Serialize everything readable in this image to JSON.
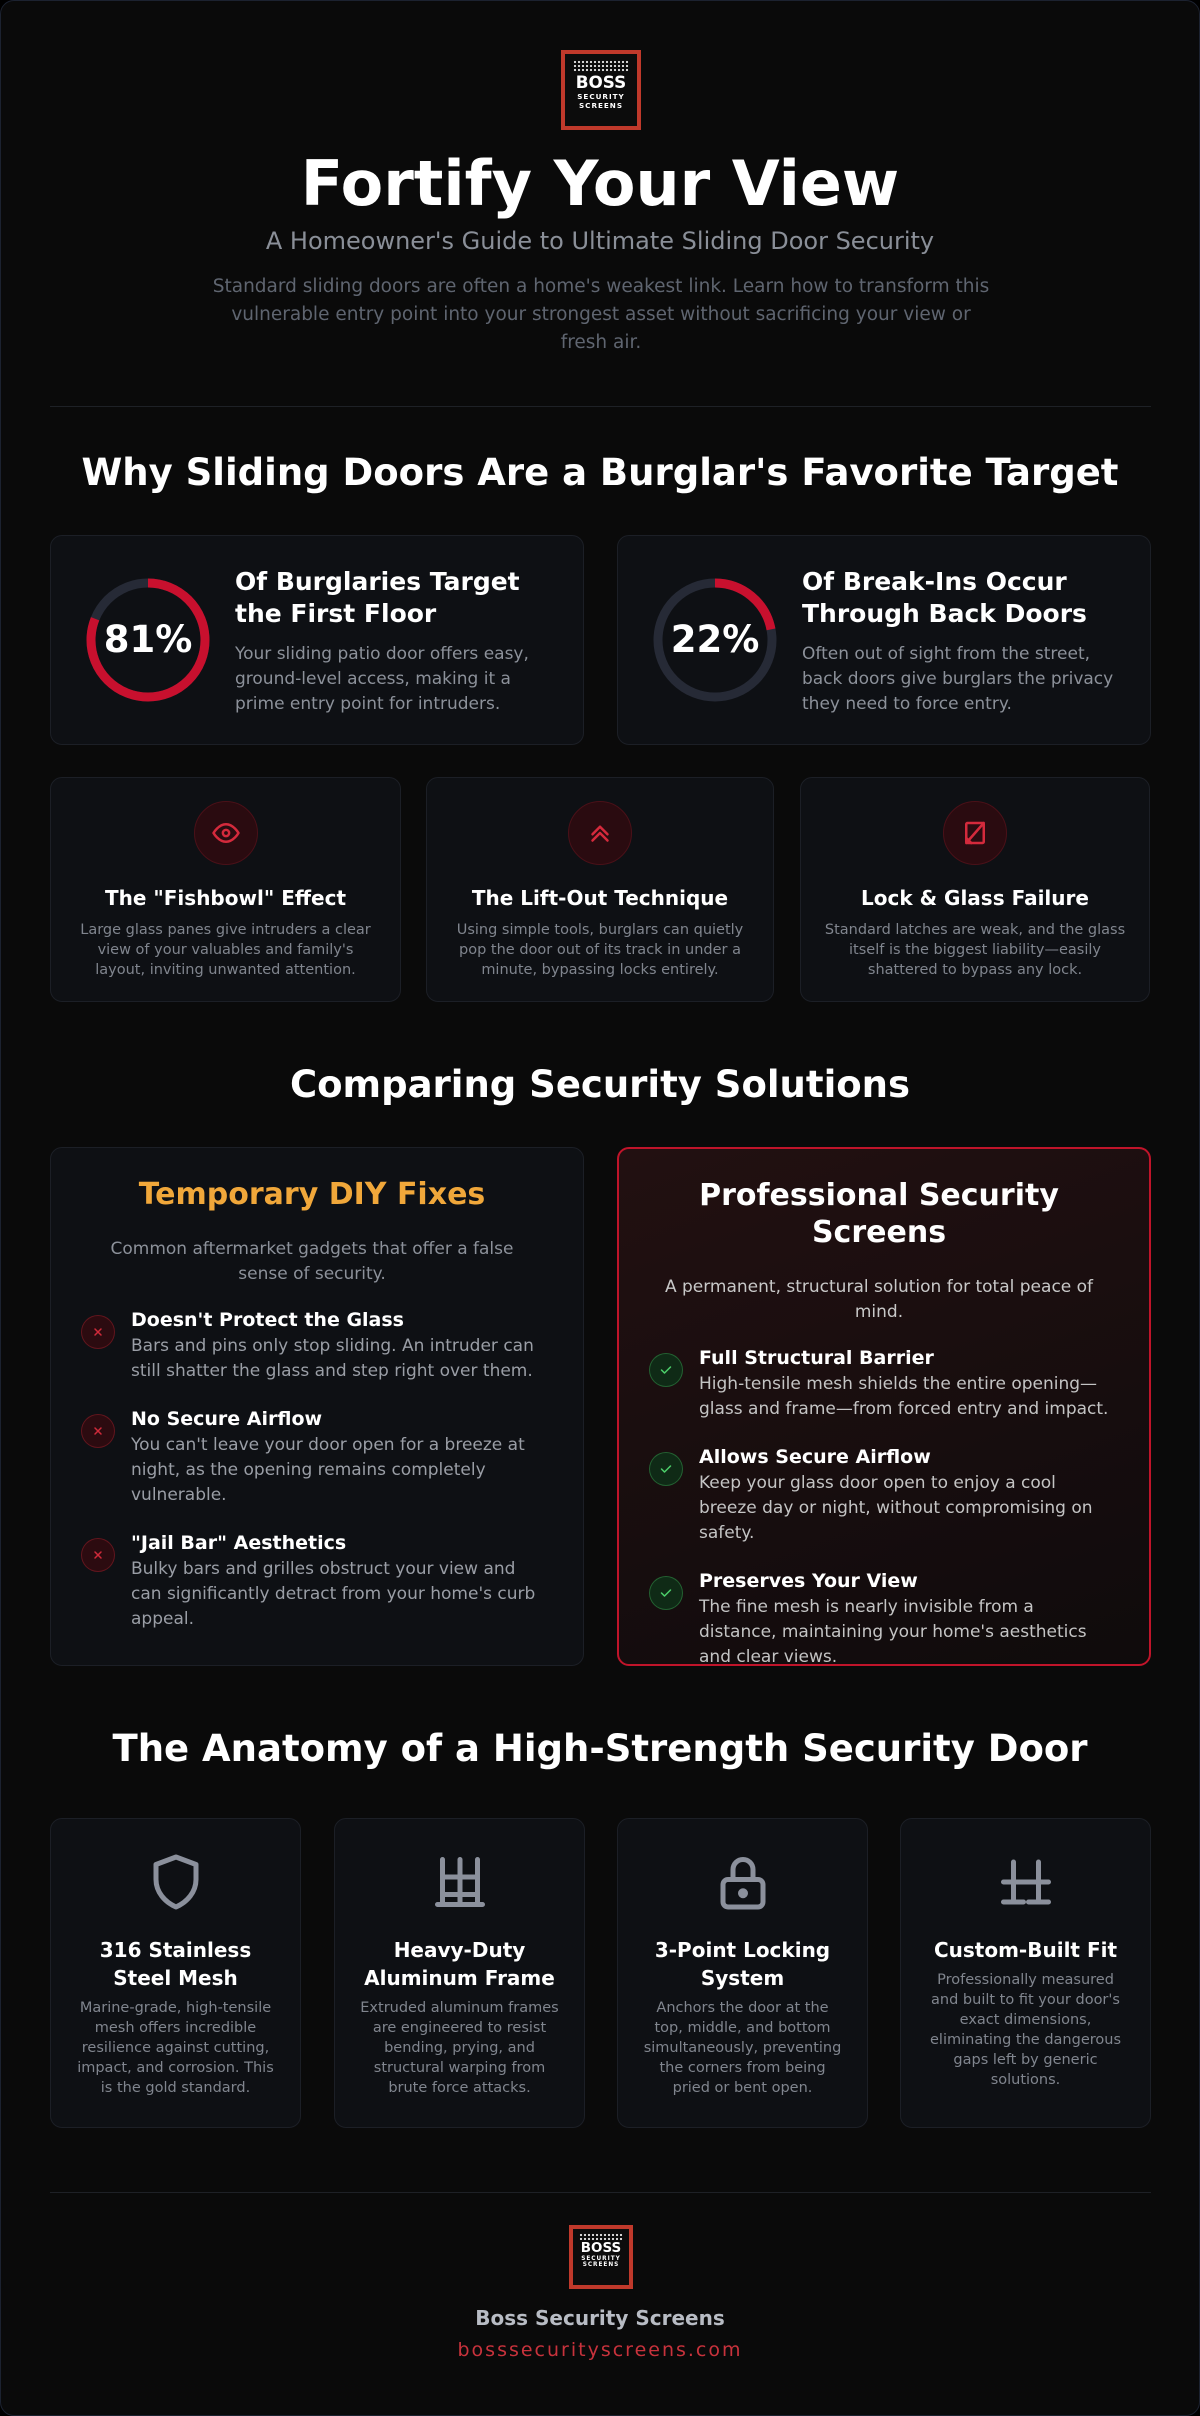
{
  "header": {
    "logo": {
      "line1": "BOSS",
      "line2": "SECURITY",
      "line3": "SCREENS"
    },
    "title": "Fortify Your View",
    "subtitle": "A Homeowner's Guide to Ultimate Sliding Door Security",
    "intro": "Standard sliding doors are often a home's weakest link. Learn how to transform this vulnerable entry point into your strongest asset without sacrificing your view or fresh air."
  },
  "threats": {
    "title": "Why Sliding Doors Are a Burglar's Favorite Target",
    "stats": [
      {
        "value": 81,
        "value_label": "81%",
        "title": "Of Burglaries Target the First Floor",
        "text": "Your sliding patio door offers easy, ground-level access, making it a prime entry point for intruders."
      },
      {
        "value": 22,
        "value_label": "22%",
        "title": "Of Break-Ins Occur Through Back Doors",
        "text": "Often out of sight from the street, back doors give burglars the privacy they need to force entry."
      }
    ],
    "cards": [
      {
        "title": "The \"Fishbowl\" Effect",
        "text": "Large glass panes give intruders a clear view of your valuables and family's layout, inviting unwanted attention."
      },
      {
        "title": "The Lift-Out Technique",
        "text": "Using simple tools, burglars can quietly pop the door out of its track in under a minute, bypassing locks entirely."
      },
      {
        "title": "Lock & Glass Failure",
        "text": "Standard latches are weak, and the glass itself is the biggest liability—easily shattered to bypass any lock."
      }
    ]
  },
  "comparison": {
    "title": "Comparing Security Solutions",
    "diy": {
      "title": "Temporary DIY Fixes",
      "subtitle": "Common aftermarket gadgets that offer a false sense of security.",
      "items": [
        {
          "title": "Doesn't Protect the Glass",
          "text": "Bars and pins only stop sliding. An intruder can still shatter the glass and step right over them."
        },
        {
          "title": "No Secure Airflow",
          "text": "You can't leave your door open for a breeze at night, as the opening remains completely vulnerable."
        },
        {
          "title": "\"Jail Bar\" Aesthetics",
          "text": "Bulky bars and grilles obstruct your view and can significantly detract from your home's curb appeal."
        }
      ]
    },
    "pro": {
      "title": "Professional Security Screens",
      "subtitle": "A permanent, structural solution for total peace of mind.",
      "items": [
        {
          "title": "Full Structural Barrier",
          "text": "High-tensile mesh shields the entire opening—glass and frame—from forced entry and impact."
        },
        {
          "title": "Allows Secure Airflow",
          "text": "Keep your glass door open to enjoy a cool breeze day or night, without compromising on safety."
        },
        {
          "title": "Preserves Your View",
          "text": "The fine mesh is nearly invisible from a distance, maintaining your home's aesthetics and clear views."
        }
      ]
    }
  },
  "anatomy": {
    "title": "The Anatomy of a High-Strength Security Door",
    "features": [
      {
        "title": "316 Stainless Steel Mesh",
        "text": "Marine-grade, high-tensile mesh offers incredible resilience against cutting, impact, and corrosion. This is the gold standard."
      },
      {
        "title": "Heavy-Duty Aluminum Frame",
        "text": "Extruded aluminum frames are engineered to resist bending, prying, and structural warping from brute force attacks."
      },
      {
        "title": "3-Point Locking System",
        "text": "Anchors the door at the top, middle, and bottom simultaneously, preventing the corners from being pried or bent open."
      },
      {
        "title": "Custom-Built Fit",
        "text": "Professionally measured and built to fit your door's exact dimensions, eliminating the dangerous gaps left by generic solutions."
      }
    ]
  },
  "footer": {
    "logo": {
      "line1": "BOSS",
      "line2": "SECURITY",
      "line3": "SCREENS"
    },
    "name": "Boss Security Screens",
    "url": "bosssecurityscreens.com"
  }
}
